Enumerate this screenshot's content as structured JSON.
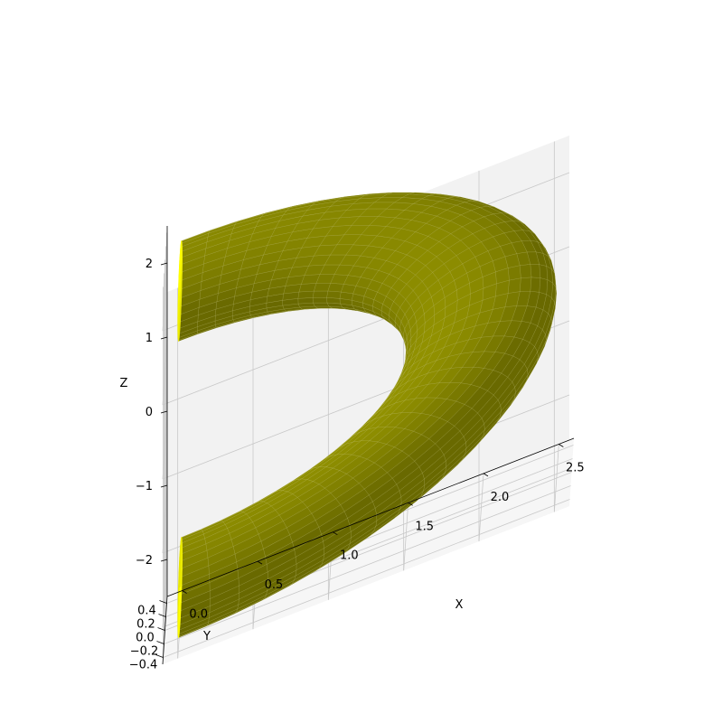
{
  "chart_data": {
    "type": "surface3d",
    "title": "",
    "shape": "half-torus",
    "surface_color": "#ffff00",
    "shade_dark": "#5c5c00",
    "mesh_color": "#d8d8a0",
    "pane_color": "#f2f2f2",
    "grid_color": "#c8c8c8",
    "torus": {
      "major_radius": 2.0,
      "minor_radius": 0.5,
      "center_x": 0.0,
      "angle_range_deg": [
        -90,
        90
      ]
    },
    "xlabel": "X",
    "ylabel": "Y",
    "zlabel": "Z",
    "xlim": [
      -0.1,
      2.6
    ],
    "ylim": [
      -0.5,
      0.5
    ],
    "zlim": [
      -2.5,
      2.5
    ],
    "x_ticks": [
      {
        "value": 0.0,
        "label": "0.0"
      },
      {
        "value": 0.5,
        "label": "0.5"
      },
      {
        "value": 1.0,
        "label": "1.0"
      },
      {
        "value": 1.5,
        "label": "1.5"
      },
      {
        "value": 2.0,
        "label": "2.0"
      },
      {
        "value": 2.5,
        "label": "2.5"
      }
    ],
    "y_ticks": [
      {
        "value": -0.4,
        "label": "−0.4"
      },
      {
        "value": -0.2,
        "label": "−0.2"
      },
      {
        "value": 0.0,
        "label": "0.0"
      },
      {
        "value": 0.2,
        "label": "0.2"
      },
      {
        "value": 0.4,
        "label": "0.4"
      }
    ],
    "z_ticks": [
      {
        "value": -2,
        "label": "−2"
      },
      {
        "value": -1,
        "label": "−1"
      },
      {
        "value": 0,
        "label": "0"
      },
      {
        "value": 1,
        "label": "1"
      },
      {
        "value": 2,
        "label": "2"
      }
    ],
    "grid": true
  }
}
